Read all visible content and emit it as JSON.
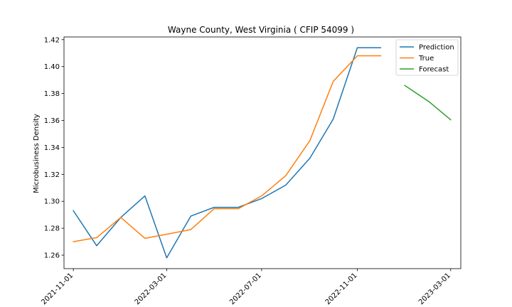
{
  "chart_data": {
    "type": "line",
    "title": "Wayne County, West Virginia ( CFIP 54099 )",
    "xlabel": "",
    "ylabel": "Microbusiness Density",
    "xlim": [
      "2021-10-20",
      "2023-03-14"
    ],
    "ylim": [
      1.25,
      1.422
    ],
    "x_ticks": [
      "2021-11-01",
      "2022-03-01",
      "2022-07-01",
      "2022-11-01",
      "2023-03-01"
    ],
    "y_ticks": [
      1.26,
      1.28,
      1.3,
      1.32,
      1.34,
      1.36,
      1.38,
      1.4,
      1.42
    ],
    "y_tick_labels": [
      "1.26",
      "1.28",
      "1.30",
      "1.32",
      "1.34",
      "1.36",
      "1.38",
      "1.40",
      "1.42"
    ],
    "grid": false,
    "legend_position": "top-right",
    "series": [
      {
        "name": "Prediction",
        "color": "#1f77b4",
        "x": [
          "2021-11-01",
          "2021-12-01",
          "2022-01-01",
          "2022-02-01",
          "2022-03-01",
          "2022-04-01",
          "2022-05-01",
          "2022-06-01",
          "2022-07-01",
          "2022-08-01",
          "2022-09-01",
          "2022-10-01",
          "2022-11-01",
          "2022-12-01"
        ],
        "values": [
          1.293,
          1.267,
          1.288,
          1.304,
          1.258,
          1.289,
          1.2955,
          1.2955,
          1.302,
          1.312,
          1.332,
          1.361,
          1.414,
          1.414
        ]
      },
      {
        "name": "True",
        "color": "#ff7f0e",
        "x": [
          "2021-11-01",
          "2021-12-01",
          "2022-01-01",
          "2022-02-01",
          "2022-03-01",
          "2022-04-01",
          "2022-05-01",
          "2022-06-01",
          "2022-07-01",
          "2022-08-01",
          "2022-09-01",
          "2022-10-01",
          "2022-11-01",
          "2022-12-01"
        ],
        "values": [
          1.27,
          1.273,
          1.288,
          1.2725,
          1.2755,
          1.279,
          1.2945,
          1.2945,
          1.304,
          1.319,
          1.345,
          1.389,
          1.408,
          1.408
        ]
      },
      {
        "name": "Forecast",
        "color": "#2ca02c",
        "x": [
          "2023-01-01",
          "2023-02-01",
          "2023-03-01"
        ],
        "values": [
          1.386,
          1.374,
          1.3605
        ]
      }
    ]
  }
}
